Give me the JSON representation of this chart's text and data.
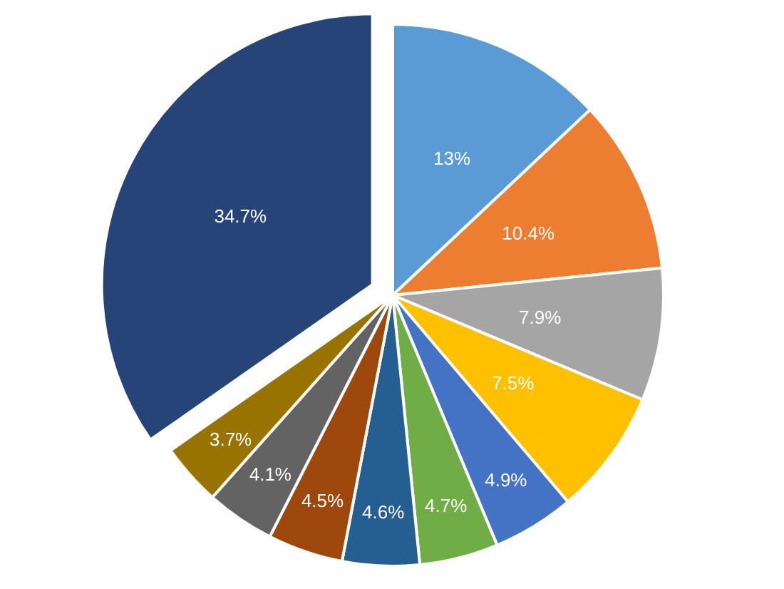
{
  "chart_data": {
    "type": "pie",
    "categories": [
      null,
      null,
      null,
      null,
      null,
      null,
      null,
      null,
      null,
      null,
      null
    ],
    "values": [
      13,
      10.4,
      7.9,
      7.5,
      4.9,
      4.7,
      4.6,
      4.5,
      4.1,
      3.7,
      34.7
    ],
    "value_labels": [
      "13%",
      "10.4%",
      "7.9%",
      "7.5%",
      "4.9%",
      "4.7%",
      "4.6%",
      "4.5%",
      "4.1%",
      "3.7%",
      "34.7%"
    ],
    "colors": [
      "#5b9bd5",
      "#ed7d31",
      "#a5a5a5",
      "#ffc000",
      "#4472c4",
      "#70ad47",
      "#255e91",
      "#9e480e",
      "#636363",
      "#997300",
      "#264478"
    ]
  }
}
